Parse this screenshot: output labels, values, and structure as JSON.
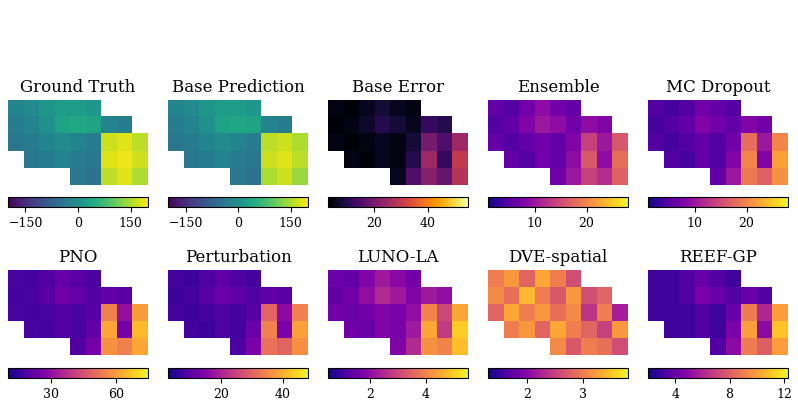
{
  "chart_data": [
    {
      "type": "heatmap",
      "title": "Ground Truth",
      "color": "viridis",
      "cells": [
        [
          -20,
          -10,
          10,
          20,
          20,
          10,
          null,
          null,
          null
        ],
        [
          -30,
          -20,
          0,
          30,
          40,
          30,
          -20,
          -30,
          null
        ],
        [
          -40,
          -30,
          -20,
          -10,
          -20,
          -30,
          170,
          180,
          160
        ],
        [
          null,
          -40,
          -30,
          -20,
          -30,
          -40,
          180,
          190,
          170
        ],
        [
          null,
          null,
          null,
          null,
          -40,
          -50,
          160,
          180,
          150
        ]
      ],
      "colorbar_range": [
        -200,
        200
      ],
      "colorbar_ticks": [
        {
          "value": -150,
          "label": "−150"
        },
        0,
        150
      ]
    },
    {
      "type": "heatmap",
      "title": "Base Prediction",
      "color": "viridis",
      "cells": [
        [
          -20,
          -10,
          10,
          20,
          20,
          10,
          null,
          null,
          null
        ],
        [
          -30,
          -20,
          0,
          30,
          35,
          30,
          -20,
          -30,
          null
        ],
        [
          -40,
          -30,
          -20,
          -10,
          -20,
          -30,
          160,
          170,
          150
        ],
        [
          null,
          -40,
          -30,
          -20,
          -30,
          -40,
          170,
          180,
          160
        ],
        [
          null,
          null,
          null,
          null,
          -40,
          -50,
          150,
          170,
          140
        ]
      ],
      "colorbar_range": [
        -200,
        200
      ],
      "colorbar_ticks": [
        {
          "value": -150,
          "label": "−150"
        },
        0,
        150
      ]
    },
    {
      "type": "heatmap",
      "title": "Base Error",
      "color": "inferno",
      "cells": [
        [
          5,
          4,
          6,
          8,
          6,
          5,
          null,
          null,
          null
        ],
        [
          4,
          5,
          7,
          10,
          8,
          6,
          12,
          10,
          null
        ],
        [
          5,
          4,
          5,
          6,
          5,
          8,
          20,
          15,
          25
        ],
        [
          null,
          5,
          4,
          6,
          5,
          10,
          25,
          12,
          30
        ],
        [
          null,
          null,
          null,
          null,
          6,
          15,
          22,
          18,
          28
        ]
      ],
      "colorbar_range": [
        3,
        55
      ],
      "colorbar_ticks": [
        20,
        40
      ]
    },
    {
      "type": "heatmap",
      "title": "Ensemble",
      "color": "plasma",
      "cells": [
        [
          6,
          5,
          7,
          9,
          7,
          6,
          null,
          null,
          null
        ],
        [
          5,
          6,
          8,
          10,
          9,
          7,
          9,
          8,
          null
        ],
        [
          6,
          5,
          6,
          7,
          6,
          8,
          14,
          10,
          16
        ],
        [
          null,
          6,
          5,
          7,
          6,
          9,
          16,
          9,
          18
        ],
        [
          null,
          null,
          null,
          null,
          7,
          10,
          14,
          12,
          17
        ]
      ],
      "colorbar_range": [
        1,
        28
      ],
      "colorbar_ticks": [
        10,
        20
      ]
    },
    {
      "type": "heatmap",
      "title": "MC Dropout",
      "color": "plasma",
      "cells": [
        [
          5,
          4,
          5,
          7,
          6,
          5,
          null,
          null,
          null
        ],
        [
          4,
          5,
          6,
          8,
          7,
          6,
          8,
          7,
          null
        ],
        [
          5,
          4,
          5,
          6,
          5,
          7,
          18,
          10,
          20
        ],
        [
          null,
          5,
          4,
          6,
          5,
          8,
          20,
          8,
          22
        ],
        [
          null,
          null,
          null,
          null,
          6,
          10,
          19,
          17,
          21
        ]
      ],
      "colorbar_range": [
        1,
        28
      ],
      "colorbar_ticks": [
        10,
        20
      ]
    },
    {
      "type": "heatmap",
      "title": "PNO",
      "color": "plasma",
      "cells": [
        [
          18,
          17,
          19,
          22,
          20,
          18,
          null,
          null,
          null
        ],
        [
          17,
          18,
          20,
          24,
          22,
          19,
          22,
          20,
          null
        ],
        [
          18,
          17,
          18,
          19,
          18,
          20,
          55,
          30,
          60
        ],
        [
          null,
          18,
          17,
          19,
          18,
          22,
          62,
          25,
          65
        ],
        [
          null,
          null,
          null,
          null,
          19,
          25,
          58,
          55,
          62
        ]
      ],
      "colorbar_range": [
        10,
        75
      ],
      "colorbar_ticks": [
        30,
        60
      ]
    },
    {
      "type": "heatmap",
      "title": "Perturbation",
      "color": "plasma",
      "cells": [
        [
          8,
          7,
          9,
          11,
          9,
          8,
          null,
          null,
          null
        ],
        [
          7,
          8,
          10,
          12,
          11,
          9,
          11,
          10,
          null
        ],
        [
          8,
          7,
          8,
          9,
          8,
          10,
          30,
          16,
          34
        ],
        [
          null,
          8,
          7,
          9,
          8,
          12,
          34,
          14,
          38
        ],
        [
          null,
          null,
          null,
          null,
          9,
          14,
          32,
          30,
          36
        ]
      ],
      "colorbar_range": [
        3,
        48
      ],
      "colorbar_ticks": [
        20,
        40
      ]
    },
    {
      "type": "heatmap",
      "title": "LUNO-LA",
      "color": "plasma",
      "cells": [
        [
          1.5,
          1.4,
          1.8,
          2.2,
          1.9,
          1.6,
          null,
          null,
          null
        ],
        [
          1.4,
          1.6,
          2.0,
          2.5,
          2.2,
          1.8,
          2.2,
          2.0,
          null
        ],
        [
          1.6,
          1.5,
          1.6,
          1.8,
          1.7,
          2.0,
          4.0,
          3.0,
          4.5
        ],
        [
          null,
          1.6,
          1.5,
          1.8,
          1.7,
          2.2,
          4.5,
          2.8,
          5.0
        ],
        [
          null,
          null,
          null,
          null,
          1.8,
          2.5,
          4.2,
          4.0,
          4.8
        ]
      ],
      "colorbar_range": [
        0.5,
        5.5
      ],
      "colorbar_ticks": [
        2,
        4
      ]
    },
    {
      "type": "heatmap",
      "title": "DVE-spatial",
      "color": "plasma",
      "cells": [
        [
          3.0,
          3.2,
          2.8,
          3.3,
          3.0,
          2.6,
          null,
          null,
          null
        ],
        [
          3.1,
          2.9,
          3.4,
          3.0,
          2.7,
          3.2,
          2.6,
          2.8,
          null
        ],
        [
          2.8,
          3.3,
          3.0,
          3.2,
          2.9,
          3.1,
          2.4,
          3.0,
          2.2
        ],
        [
          null,
          3.0,
          3.2,
          2.8,
          3.3,
          3.0,
          2.8,
          2.5,
          3.2
        ],
        [
          null,
          null,
          null,
          null,
          3.1,
          2.7,
          3.0,
          2.9,
          2.6
        ]
      ],
      "colorbar_range": [
        1.3,
        3.8
      ],
      "colorbar_ticks": [
        2,
        3
      ]
    },
    {
      "type": "heatmap",
      "title": "REEF-GP",
      "color": "plasma",
      "cells": [
        [
          3,
          3,
          3.5,
          4,
          3.5,
          3,
          null,
          null,
          null
        ],
        [
          3,
          3,
          3.5,
          4.5,
          4,
          3.5,
          4,
          3.5,
          null
        ],
        [
          3,
          3,
          3,
          3.5,
          3,
          4,
          9,
          6,
          10
        ],
        [
          null,
          3,
          3,
          3.5,
          3,
          4.5,
          10,
          5,
          11
        ],
        [
          null,
          null,
          null,
          null,
          3.5,
          5,
          9,
          8,
          10
        ]
      ],
      "colorbar_range": [
        2,
        12.3
      ],
      "colorbar_ticks": [
        4,
        8,
        12
      ]
    }
  ]
}
